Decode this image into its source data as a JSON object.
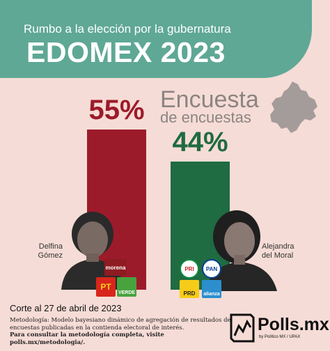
{
  "header": {
    "subtitle": "Rumbo a la elección por la gubernatura",
    "title": "EDOMEX 2023"
  },
  "survey_label": {
    "line1": "Encuesta",
    "line2": "de encuestas"
  },
  "chart_data": {
    "type": "bar",
    "categories": [
      "Delfina Gómez",
      "Alejandra del Moral"
    ],
    "values": [
      55,
      44
    ],
    "value_labels": [
      "55%",
      "44%"
    ],
    "colors": [
      "#9c1b2a",
      "#1f6b42"
    ],
    "ylim": [
      0,
      55
    ],
    "grid": false
  },
  "candidates": [
    {
      "name_line1": "Delfina",
      "name_line2": "Gómez",
      "parties": [
        "morena",
        "PT",
        "VERDE"
      ]
    },
    {
      "name_line1": "Alejandra",
      "name_line2": "del Moral",
      "parties": [
        "PRI",
        "PAN",
        "PRD",
        "alianza"
      ]
    }
  ],
  "footer": {
    "date": "Corte al 27 de abril de 2023",
    "methodology": "Metodología: Modelo bayesiano dinámico de agregación de resultados de encuestas publicadas en la contienda electoral de interés.",
    "link_text": "Para consultar la metodología completa, visite polls.mx/metodologia/."
  },
  "brand": {
    "name": "Polls.mx",
    "sub": "by Político MX / UPAX"
  }
}
